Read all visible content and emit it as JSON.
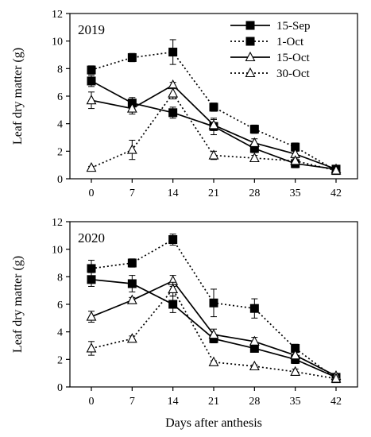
{
  "chart_data": [
    {
      "type": "line",
      "year_label": "2019",
      "ylabel": "Leaf dry matter (g)",
      "xlabel": "",
      "x": [
        0,
        7,
        14,
        21,
        28,
        35,
        42
      ],
      "ylim": [
        0,
        12
      ],
      "yticks": [
        0,
        2,
        4,
        6,
        8,
        10,
        12
      ],
      "legend_position": "top-right",
      "series": [
        {
          "name": "15-Sep",
          "marker": "square",
          "line": "solid",
          "values": [
            7.1,
            5.5,
            4.8,
            3.8,
            2.2,
            1.1,
            0.7
          ],
          "errors": [
            0.4,
            0.4,
            0.4,
            0.6,
            0.3,
            0.3,
            0.1
          ]
        },
        {
          "name": "1-Oct",
          "marker": "square",
          "line": "dotted",
          "values": [
            7.9,
            8.8,
            9.2,
            5.2,
            3.6,
            2.3,
            0.6
          ],
          "errors": [
            0.3,
            0.3,
            0.9,
            0.3,
            0.3,
            0.3,
            0.1
          ]
        },
        {
          "name": "15-Oct",
          "marker": "triangle",
          "line": "solid",
          "values": [
            5.7,
            5.1,
            6.8,
            3.9,
            2.6,
            1.8,
            0.7
          ],
          "errors": [
            0.6,
            0.4,
            0.2,
            0.4,
            0.3,
            0.2,
            0.1
          ]
        },
        {
          "name": "30-Oct",
          "marker": "triangle",
          "line": "dotted",
          "values": [
            0.8,
            2.1,
            6.2,
            1.7,
            1.5,
            1.3,
            0.6
          ],
          "errors": [
            0.1,
            0.7,
            0.4,
            0.3,
            0.2,
            0.2,
            0.1
          ]
        }
      ]
    },
    {
      "type": "line",
      "year_label": "2020",
      "ylabel": "Leaf dry matter (g)",
      "xlabel": "Days after anthesis",
      "x": [
        0,
        7,
        14,
        21,
        28,
        35,
        42
      ],
      "ylim": [
        0,
        12
      ],
      "yticks": [
        0,
        2,
        4,
        6,
        8,
        10,
        12
      ],
      "legend_position": "none",
      "series": [
        {
          "name": "15-Sep",
          "marker": "square",
          "line": "solid",
          "values": [
            7.8,
            7.5,
            6.0,
            3.5,
            2.8,
            2.0,
            0.7
          ],
          "errors": [
            0.5,
            0.6,
            0.6,
            0.3,
            0.2,
            0.3,
            0.1
          ]
        },
        {
          "name": "1-Oct",
          "marker": "square",
          "line": "dotted",
          "values": [
            8.6,
            9.0,
            10.7,
            6.1,
            5.7,
            2.8,
            0.6
          ],
          "errors": [
            0.6,
            0.3,
            0.4,
            1.0,
            0.7,
            0.3,
            0.1
          ]
        },
        {
          "name": "15-Oct",
          "marker": "triangle",
          "line": "solid",
          "values": [
            5.1,
            6.3,
            7.7,
            3.8,
            3.3,
            2.3,
            0.8
          ],
          "errors": [
            0.4,
            0.2,
            0.4,
            0.4,
            0.3,
            0.2,
            0.1
          ]
        },
        {
          "name": "30-Oct",
          "marker": "triangle",
          "line": "dotted",
          "values": [
            2.8,
            3.5,
            7.1,
            1.8,
            1.5,
            1.1,
            0.6
          ],
          "errors": [
            0.5,
            0.2,
            0.5,
            0.1,
            0.1,
            0.2,
            0.1
          ]
        }
      ]
    }
  ]
}
